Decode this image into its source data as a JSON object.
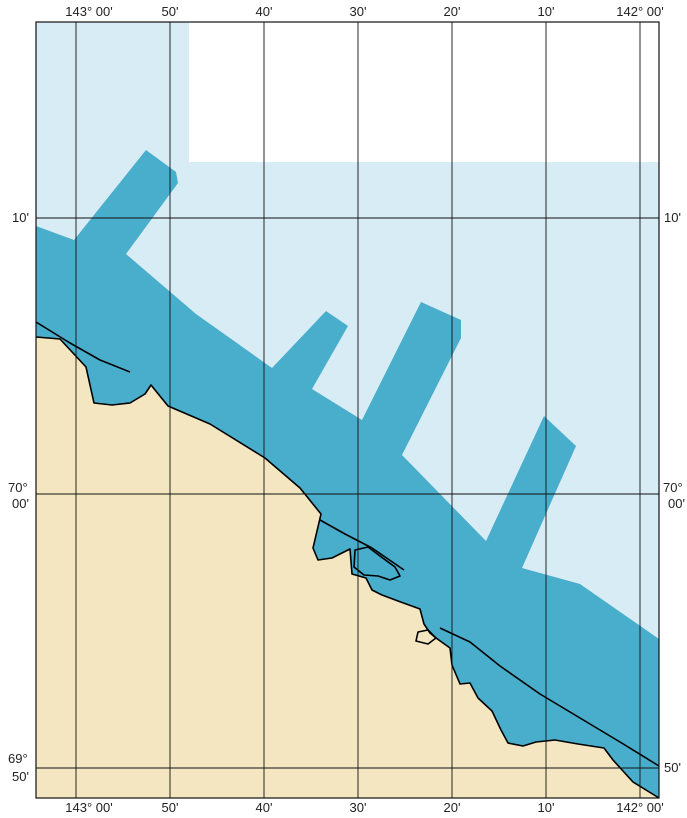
{
  "map": {
    "colors": {
      "land": "#f3e6c0",
      "water_light": "#d7ecf4",
      "water_dark": "#49adcc",
      "blank": "#ffffff",
      "grid": "#111111",
      "coastline": "#000000"
    },
    "longitude_labels_top": [
      "143° 00'",
      "50'",
      "40'",
      "30'",
      "20'",
      "10'",
      "142° 00'"
    ],
    "longitude_labels_bottom": [
      "143° 00'",
      "50'",
      "40'",
      "30'",
      "20'",
      "10'",
      "142° 00'"
    ],
    "latitude_labels_left": [
      {
        "line1": "10'",
        "line2": ""
      },
      {
        "line1": "70°",
        "line2": "00'"
      },
      {
        "line1": "69°",
        "line2": "50'"
      }
    ],
    "latitude_labels_right": [
      {
        "line1": "10'",
        "line2": ""
      },
      {
        "line1": "70°",
        "line2": "00'"
      },
      {
        "line1": "",
        "line2": "50'"
      }
    ]
  }
}
